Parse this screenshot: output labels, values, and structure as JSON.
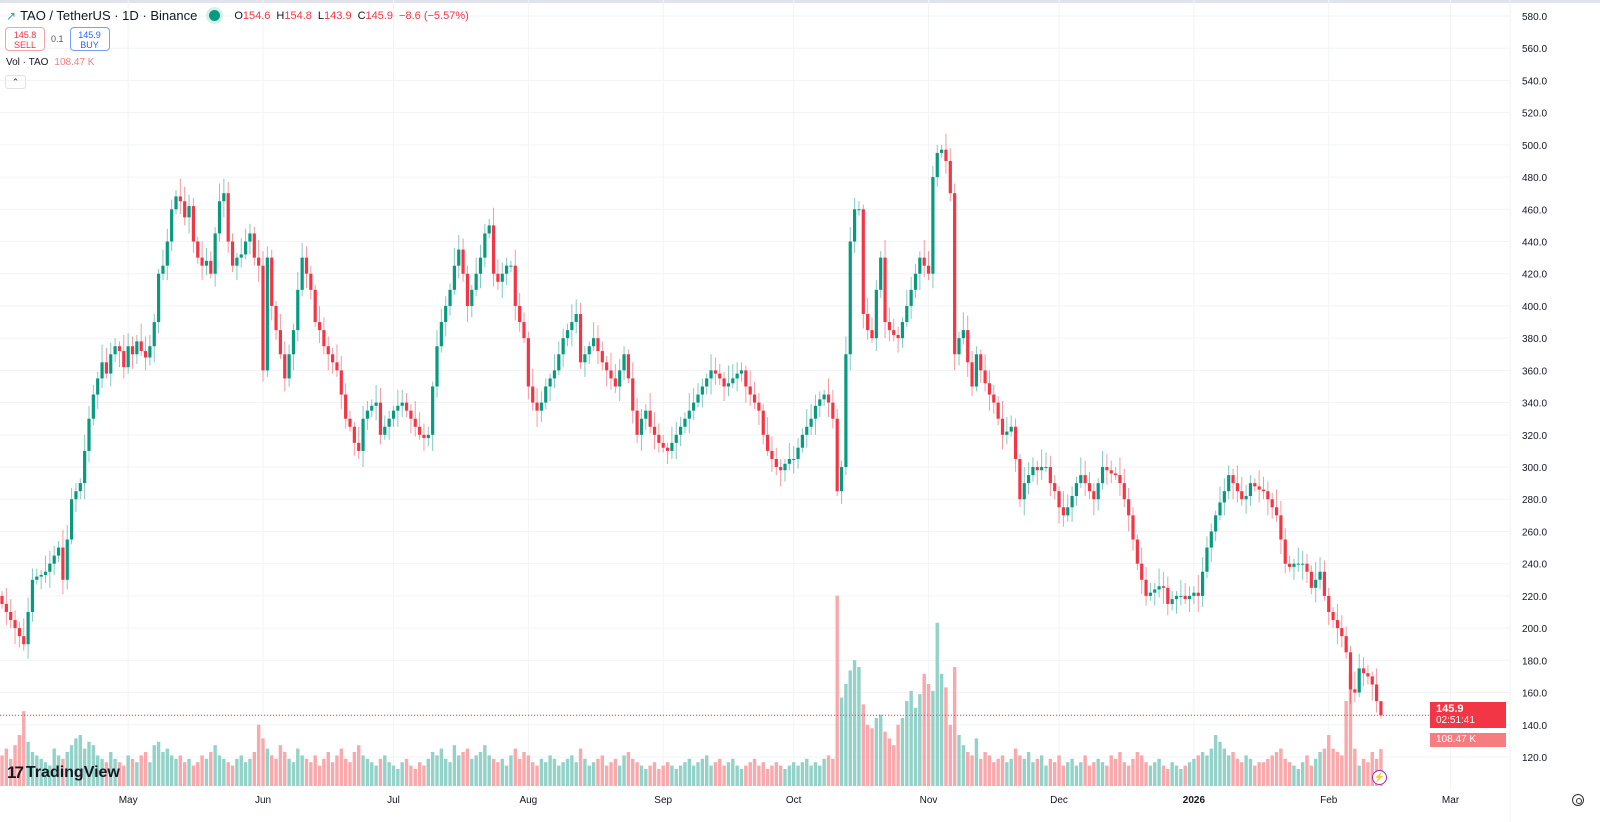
{
  "header": {
    "symbol": "TAO / TetherUS · 1D · Binance",
    "open_label": "O",
    "open": "154.6",
    "high_label": "H",
    "high": "154.8",
    "low_label": "L",
    "low": "143.9",
    "close_label": "C",
    "close": "145.9",
    "change": "−8.6 (−5.57%)",
    "status_color": "#089981"
  },
  "trade": {
    "sell_price": "145.8",
    "sell_label": "SELL",
    "spread": "0.1",
    "buy_price": "145.9",
    "buy_label": "BUY"
  },
  "volume_legend": {
    "label": "Vol · TAO",
    "value": "108.47 K"
  },
  "collapse_icon": "chevron-up-icon",
  "logo": {
    "text": "TradingView"
  },
  "price_label": {
    "price": "145.9",
    "countdown": "02:51:41"
  },
  "volume_label": "108.47 K",
  "colors": {
    "up": "#089981",
    "down": "#f23645",
    "vol_up": "#93d2c8",
    "vol_down": "#f9a8ab"
  },
  "chart_data": {
    "type": "candlestick",
    "interval": "1D",
    "last_candle": {
      "open": 154.6,
      "high": 154.8,
      "low": 143.9,
      "close": 145.9,
      "volume_k": 108.47
    },
    "closes": [
      215,
      210,
      205,
      200,
      195,
      190,
      210,
      230,
      232,
      233,
      235,
      240,
      245,
      250,
      230,
      255,
      280,
      285,
      290,
      310,
      330,
      345,
      355,
      365,
      358,
      370,
      375,
      372,
      362,
      375,
      370,
      378,
      372,
      368,
      375,
      390,
      420,
      425,
      440,
      460,
      468,
      465,
      455,
      462,
      440,
      430,
      425,
      428,
      420,
      445,
      465,
      470,
      440,
      425,
      430,
      432,
      440,
      445,
      430,
      425,
      360,
      430,
      400,
      385,
      370,
      355,
      370,
      385,
      410,
      430,
      420,
      410,
      390,
      385,
      375,
      370,
      365,
      360,
      345,
      330,
      325,
      315,
      310,
      330,
      335,
      338,
      340,
      320,
      325,
      330,
      335,
      338,
      340,
      335,
      330,
      325,
      320,
      318,
      320,
      350,
      375,
      390,
      400,
      410,
      425,
      435,
      420,
      400,
      410,
      420,
      430,
      445,
      450,
      420,
      415,
      420,
      425,
      425,
      400,
      390,
      380,
      350,
      340,
      335,
      340,
      350,
      355,
      360,
      370,
      380,
      385,
      390,
      395,
      365,
      370,
      375,
      380,
      372,
      365,
      360,
      355,
      350,
      360,
      370,
      355,
      335,
      320,
      330,
      335,
      325,
      320,
      315,
      312,
      310,
      315,
      320,
      325,
      330,
      335,
      340,
      345,
      350,
      355,
      360,
      358,
      355,
      350,
      352,
      355,
      358,
      360,
      350,
      345,
      340,
      335,
      320,
      310,
      305,
      300,
      298,
      302,
      305,
      305,
      312,
      320,
      325,
      330,
      338,
      342,
      345,
      340,
      330,
      285,
      300,
      370,
      440,
      460,
      460,
      395,
      385,
      380,
      410,
      430,
      390,
      385,
      382,
      380,
      390,
      400,
      410,
      420,
      430,
      425,
      420,
      480,
      495,
      497,
      490,
      470,
      370,
      380,
      385,
      365,
      350,
      370,
      360,
      352,
      345,
      340,
      330,
      320,
      322,
      325,
      305,
      280,
      290,
      295,
      300,
      298,
      300,
      300,
      290,
      285,
      275,
      270,
      275,
      282,
      290,
      295,
      290,
      285,
      280,
      290,
      300,
      298,
      296,
      295,
      290,
      280,
      270,
      255,
      240,
      230,
      220,
      222,
      224,
      226,
      225,
      215,
      218,
      220,
      220,
      218,
      220,
      222,
      220,
      235,
      250,
      260,
      270,
      278,
      285,
      295,
      290,
      285,
      280,
      282,
      290,
      288,
      286,
      285,
      280,
      275,
      270,
      255,
      240,
      238,
      240,
      240,
      240,
      235,
      225,
      230,
      235,
      220,
      210,
      205,
      200,
      195,
      185,
      162,
      160,
      175,
      172,
      170,
      165,
      154.6,
      145.9
    ],
    "volumes_k": [
      90,
      110,
      80,
      120,
      150,
      220,
      130,
      100,
      90,
      80,
      70,
      60,
      110,
      90,
      80,
      100,
      120,
      140,
      150,
      110,
      130,
      120,
      90,
      80,
      70,
      100,
      80,
      70,
      60,
      90,
      80,
      70,
      90,
      100,
      70,
      120,
      130,
      100,
      110,
      90,
      80,
      90,
      70,
      80,
      60,
      70,
      90,
      80,
      100,
      120,
      90,
      80,
      70,
      60,
      80,
      90,
      70,
      80,
      100,
      180,
      140,
      110,
      90,
      80,
      120,
      100,
      80,
      70,
      110,
      90,
      80,
      70,
      90,
      60,
      80,
      100,
      70,
      90,
      110,
      80,
      70,
      100,
      120,
      90,
      80,
      70,
      60,
      80,
      90,
      70,
      60,
      50,
      70,
      80,
      60,
      50,
      70,
      60,
      80,
      100,
      90,
      110,
      80,
      70,
      120,
      90,
      100,
      110,
      80,
      90,
      100,
      120,
      90,
      80,
      70,
      80,
      60,
      90,
      110,
      80,
      100,
      90,
      70,
      60,
      80,
      70,
      90,
      80,
      60,
      70,
      80,
      90,
      70,
      110,
      80,
      60,
      70,
      80,
      90,
      60,
      70,
      80,
      60,
      90,
      100,
      80,
      70,
      60,
      50,
      60,
      70,
      50,
      60,
      70,
      60,
      50,
      60,
      70,
      80,
      60,
      70,
      80,
      90,
      60,
      70,
      80,
      60,
      70,
      80,
      60,
      50,
      60,
      70,
      80,
      60,
      70,
      50,
      60,
      70,
      60,
      50,
      60,
      70,
      60,
      70,
      80,
      60,
      70,
      60,
      80,
      90,
      80,
      560,
      260,
      300,
      340,
      370,
      350,
      240,
      180,
      170,
      200,
      210,
      160,
      140,
      120,
      180,
      200,
      250,
      280,
      230,
      270,
      330,
      300,
      280,
      480,
      330,
      290,
      180,
      350,
      150,
      120,
      100,
      90,
      140,
      80,
      100,
      90,
      70,
      80,
      90,
      70,
      80,
      110,
      90,
      80,
      100,
      70,
      80,
      90,
      60,
      80,
      70,
      90,
      60,
      70,
      80,
      60,
      70,
      90,
      60,
      70,
      80,
      70,
      60,
      90,
      80,
      100,
      70,
      60,
      80,
      100,
      90,
      70,
      60,
      70,
      80,
      60,
      50,
      70,
      60,
      50,
      60,
      70,
      80,
      90,
      100,
      90,
      110,
      150,
      130,
      110,
      90,
      100,
      80,
      70,
      90,
      80,
      60,
      70,
      70,
      80,
      90,
      100,
      110,
      80,
      70,
      60,
      50,
      70,
      90,
      60,
      80,
      100,
      110,
      150,
      110,
      100,
      90,
      250,
      330,
      110,
      60,
      80,
      70,
      100,
      80,
      108.47
    ],
    "y_axis": {
      "min": 120,
      "max": 580,
      "step": 20,
      "ticks": [
        "580.0",
        "560.0",
        "540.0",
        "520.0",
        "500.0",
        "480.0",
        "460.0",
        "440.0",
        "420.0",
        "400.0",
        "380.0",
        "360.0",
        "340.0",
        "320.0",
        "300.0",
        "280.0",
        "260.0",
        "240.0",
        "220.0",
        "200.0",
        "180.0",
        "160.0",
        "140.0",
        "120.0"
      ]
    },
    "x_ticks": [
      {
        "label": "May",
        "date": "2025-05-01"
      },
      {
        "label": "Jun",
        "date": "2025-06-01"
      },
      {
        "label": "Jul",
        "date": "2025-07-01"
      },
      {
        "label": "Aug",
        "date": "2025-08-01"
      },
      {
        "label": "Sep",
        "date": "2025-09-01"
      },
      {
        "label": "Oct",
        "date": "2025-10-01"
      },
      {
        "label": "Nov",
        "date": "2025-11-01"
      },
      {
        "label": "Dec",
        "date": "2025-12-01"
      },
      {
        "label": "2026",
        "date": "2026-01-01"
      },
      {
        "label": "Feb",
        "date": "2026-02-01"
      },
      {
        "label": "Mar",
        "date": "2026-03-01"
      }
    ],
    "grid": true
  }
}
